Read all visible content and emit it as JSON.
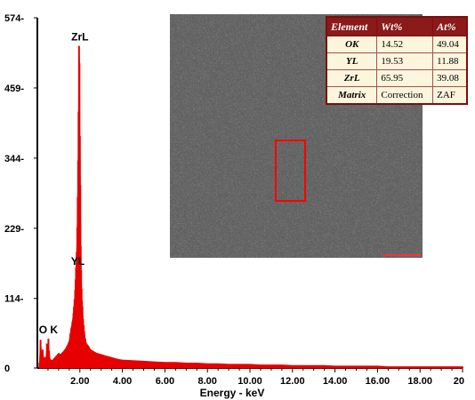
{
  "chart_data": {
    "type": "line",
    "title": "",
    "xlabel": "Energy - keV",
    "ylabel": "",
    "xlim": [
      0,
      20
    ],
    "ylim": [
      0,
      574
    ],
    "x_ticks": [
      "2.00",
      "4.00",
      "6.00",
      "8.00",
      "10.00",
      "12.00",
      "14.00",
      "16.00",
      "18.00",
      "20"
    ],
    "y_ticks": [
      "0",
      "114-",
      "229-",
      "344-",
      "459-",
      "574-"
    ],
    "series": [
      {
        "color": "#e60000",
        "x": [
          0.1,
          0.15,
          0.2,
          0.22,
          0.25,
          0.3,
          0.35,
          0.4,
          0.45,
          0.5,
          0.52,
          0.55,
          0.6,
          0.7,
          0.8,
          0.9,
          1.0,
          1.1,
          1.2,
          1.3,
          1.4,
          1.5,
          1.55,
          1.6,
          1.65,
          1.7,
          1.72,
          1.75,
          1.78,
          1.8,
          1.82,
          1.85,
          1.88,
          1.9,
          1.92,
          1.94,
          1.96,
          1.98,
          2.0,
          2.02,
          2.04,
          2.06,
          2.08,
          2.1,
          2.12,
          2.15,
          2.18,
          2.2,
          2.25,
          2.3,
          2.4,
          2.5,
          2.6,
          2.8,
          3.0,
          3.2,
          3.4,
          3.6,
          3.8,
          4.0,
          4.5,
          5.0,
          5.5,
          6.0,
          6.5,
          7.0,
          7.5,
          8.0,
          8.5,
          9.0,
          9.5,
          10.0,
          10.5,
          11.0,
          11.5,
          12.0,
          12.5,
          13.0,
          13.5,
          14.0,
          14.5,
          15.0,
          15.5,
          16.0,
          16.5,
          17.0,
          17.5,
          18.0,
          18.5,
          19.0,
          19.5,
          20.0
        ],
        "values": [
          8,
          46,
          20,
          10,
          30,
          12,
          18,
          8,
          40,
          14,
          48,
          28,
          14,
          12,
          16,
          20,
          24,
          22,
          26,
          30,
          36,
          44,
          56,
          66,
          76,
          90,
          100,
          112,
          128,
          145,
          165,
          190,
          230,
          280,
          340,
          420,
          528,
          500,
          380,
          300,
          200,
          160,
          130,
          110,
          100,
          80,
          70,
          60,
          48,
          40,
          36,
          30,
          28,
          24,
          22,
          20,
          18,
          16,
          14,
          13,
          12,
          11,
          10,
          9,
          9,
          8,
          8,
          7,
          7,
          6,
          6,
          6,
          5,
          5,
          5,
          4,
          4,
          4,
          4,
          3,
          3,
          3,
          3,
          3,
          2,
          2,
          2,
          2,
          2,
          2,
          2,
          2
        ]
      }
    ],
    "annotations": [
      {
        "text": "ZrL",
        "x": 2.0,
        "y": 528
      },
      {
        "text": "YL",
        "x": 1.9,
        "y": 160
      },
      {
        "text": "O K",
        "x": 0.52,
        "y": 48
      }
    ]
  },
  "composition_table": {
    "headers": [
      "Element",
      "Wt%",
      "At%"
    ],
    "rows": [
      [
        "OK",
        "14.52",
        "49.04"
      ],
      [
        "YL",
        "19.53",
        "11.88"
      ],
      [
        "ZrL",
        "65.95",
        "39.08"
      ],
      [
        "Matrix",
        "Correction",
        "ZAF"
      ]
    ]
  },
  "micrograph": {
    "background": "#4d4d4d",
    "marker_color": "#ff0000"
  }
}
